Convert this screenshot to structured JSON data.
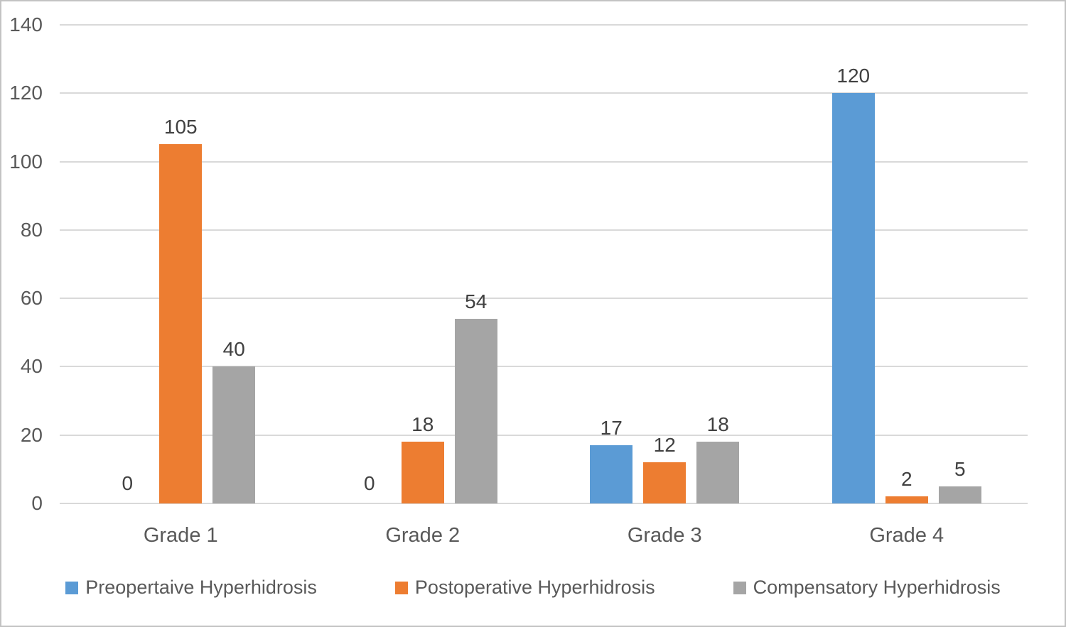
{
  "chart_data": {
    "type": "bar",
    "title": "",
    "xlabel": "",
    "ylabel": "",
    "categories": [
      "Grade 1",
      "Grade 2",
      "Grade 3",
      "Grade 4"
    ],
    "series": [
      {
        "name": "Preopertaive Hyperhidrosis",
        "color": "#5b9bd5",
        "values": [
          0,
          0,
          17,
          120
        ]
      },
      {
        "name": "Postoperative Hyperhidrosis",
        "color": "#ed7d31",
        "values": [
          105,
          18,
          12,
          2
        ]
      },
      {
        "name": "Compensatory Hyperhidrosis",
        "color": "#a5a5a5",
        "values": [
          40,
          54,
          18,
          5
        ]
      }
    ],
    "data_labels": true,
    "ylim": [
      0,
      140
    ],
    "yticks": [
      0,
      20,
      40,
      60,
      80,
      100,
      120,
      140
    ],
    "grid": true,
    "legend_position": "bottom",
    "style_colors": {
      "gridline": "#d9d9d9",
      "axis_text": "#595959",
      "data_label_text": "#404040",
      "chart_border": "#c3c3c3",
      "background": "#ffffff"
    }
  }
}
